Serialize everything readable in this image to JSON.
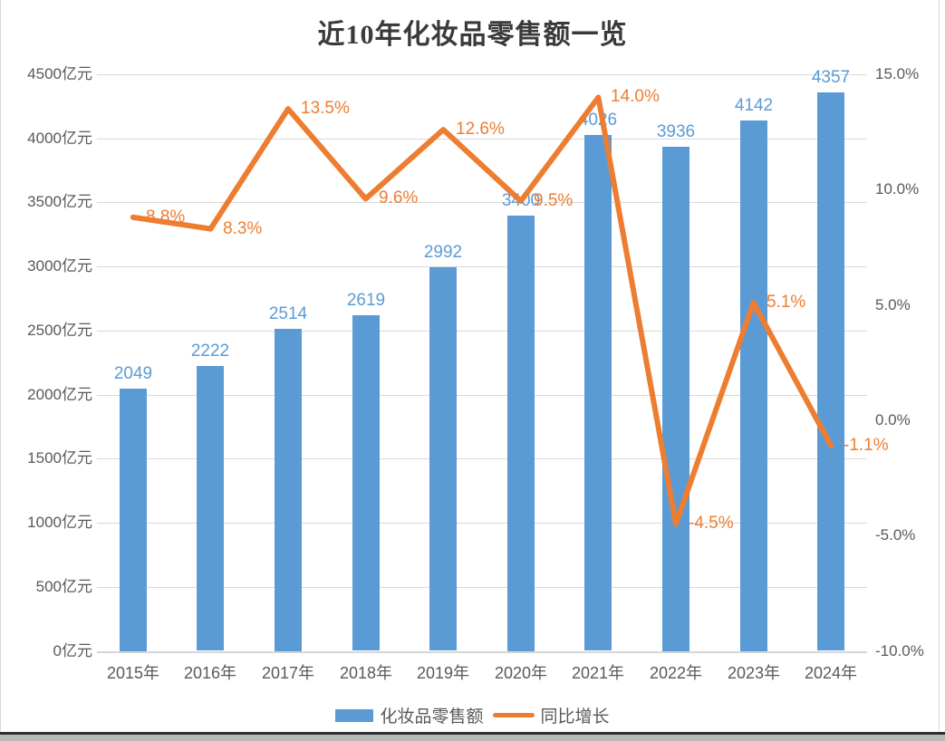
{
  "chart_data": {
    "type": "combo",
    "title": "近10年化妆品零售额一览",
    "categories": [
      "2015年",
      "2016年",
      "2017年",
      "2018年",
      "2019年",
      "2020年",
      "2021年",
      "2022年",
      "2023年",
      "2024年"
    ],
    "series": [
      {
        "name": "化妆品零售额",
        "type": "bar",
        "axis": "left",
        "unit": "亿元",
        "values": [
          2049,
          2222,
          2514,
          2619,
          2992,
          3400,
          4026,
          3936,
          4142,
          4357
        ],
        "labels": [
          "2049",
          "2222",
          "2514",
          "2619",
          "2992",
          "3400",
          "4026",
          "3936",
          "4142",
          "4357"
        ]
      },
      {
        "name": "同比增长",
        "type": "line",
        "axis": "right",
        "unit": "%",
        "values": [
          8.8,
          8.3,
          13.5,
          9.6,
          12.6,
          9.5,
          14.0,
          -4.5,
          5.1,
          -1.1
        ],
        "labels": [
          "8.8%",
          "8.3%",
          "13.5%",
          "9.6%",
          "12.6%",
          "9.5%",
          "14.0%",
          "-4.5%",
          "5.1%",
          "-1.1%"
        ]
      }
    ],
    "left_axis": {
      "min": 0,
      "max": 4500,
      "step": 500,
      "tick_labels": [
        "0亿元",
        "500亿元",
        "1000亿元",
        "1500亿元",
        "2000亿元",
        "2500亿元",
        "3000亿元",
        "3500亿元",
        "4000亿元",
        "4500亿元"
      ]
    },
    "right_axis": {
      "min": -10,
      "max": 15,
      "step": 5,
      "tick_labels": [
        "-10.0%",
        "-5.0%",
        "0.0%",
        "5.0%",
        "10.0%",
        "15.0%"
      ]
    },
    "grid": true,
    "legend_position": "bottom"
  },
  "colors": {
    "bar": "#5B9BD5",
    "line": "#ED7D31",
    "grid": "#D9D9D9",
    "axis_text": "#595959",
    "title_text": "#3A3A3A"
  }
}
